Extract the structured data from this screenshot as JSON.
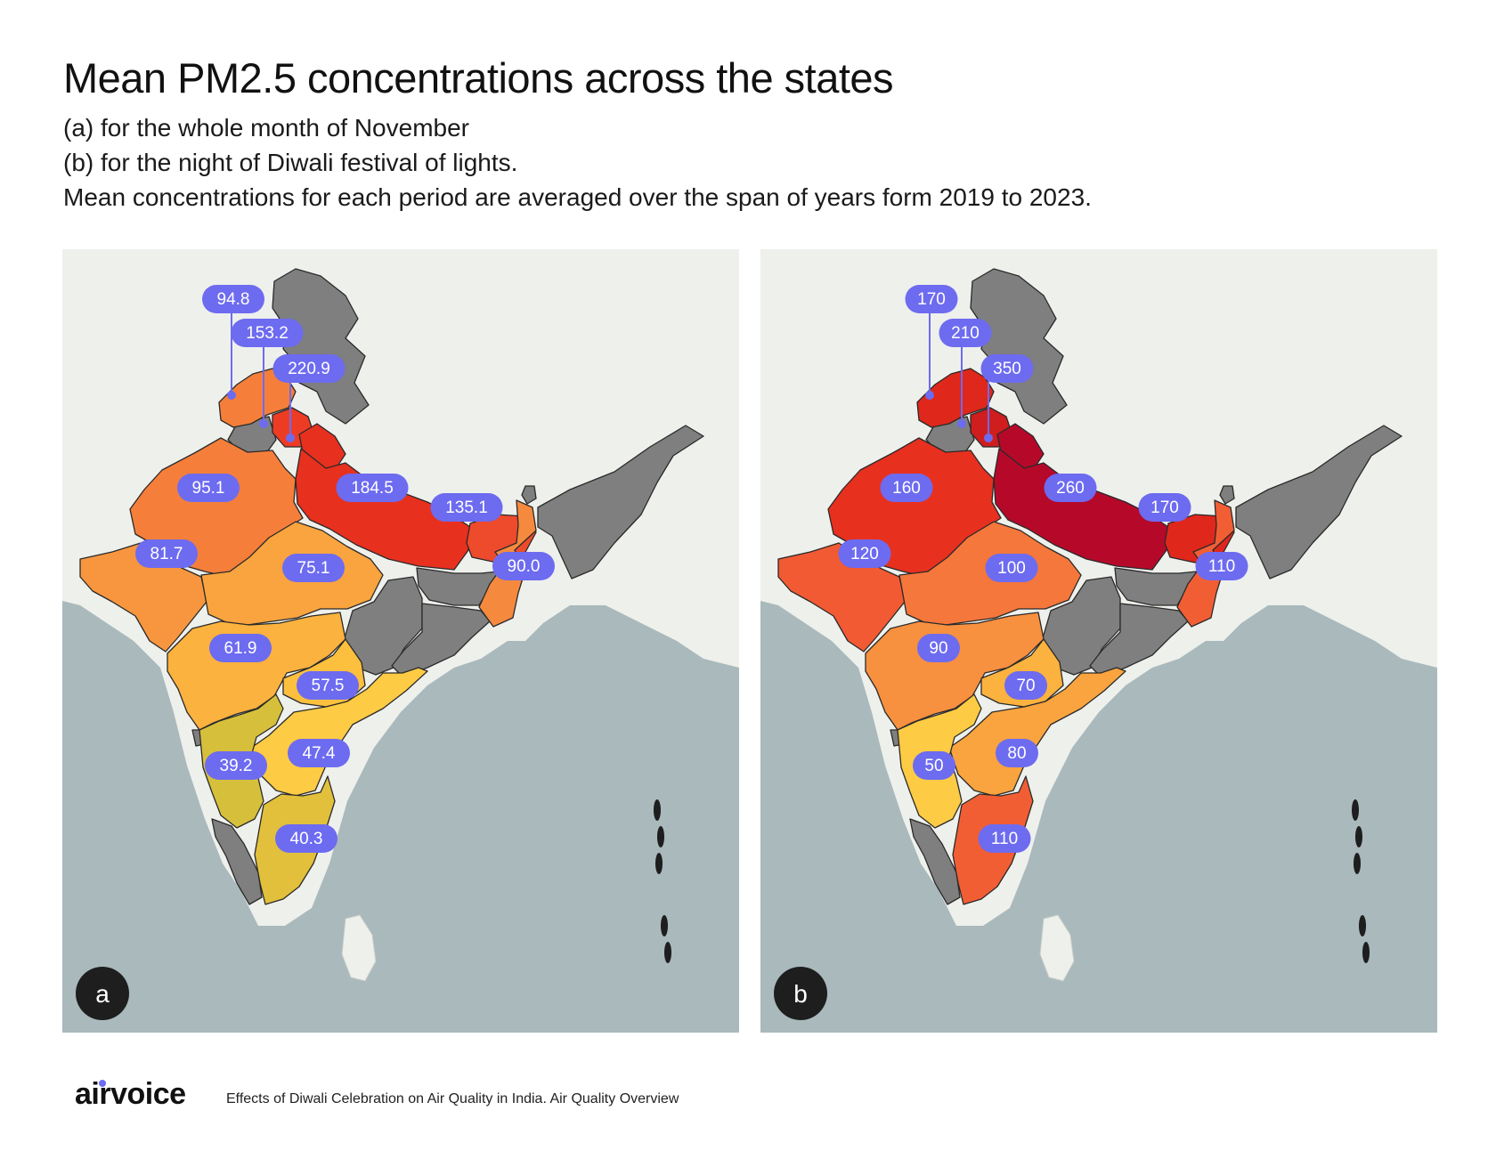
{
  "title": "Mean PM2.5 concentrations across the states",
  "subtitle_lines": [
    "(a) for the whole month of November",
    "(b) for the night of Diwali festival of lights.",
    "Mean concentrations for each period are averaged over the span of years form 2019 to 2023."
  ],
  "footer": {
    "brand": "airvoice",
    "caption": "Effects of Diwali Celebration on Air Quality in India. Air Quality Overview"
  },
  "colors": {
    "sea": "#a9b9bc",
    "land": "#eef0ec",
    "no_data_state": "#7f7f7f",
    "label_bg": "#6d6bf0",
    "label_text": "#ffffff",
    "panel_badge": "#1e1e1e"
  },
  "panels": [
    {
      "letter": "a",
      "states": {
        "jk": {
          "label": "94.8",
          "color": "#f57f3a"
        },
        "hp": {
          "label": "153.2",
          "color": "#ee3c24"
        },
        "ukd": {
          "label": "220.9",
          "color": "#e8301f"
        },
        "raj": {
          "label": "95.1",
          "color": "#f57f3a"
        },
        "up": {
          "label": "184.5",
          "color": "#e8301f"
        },
        "bih": {
          "label": "135.1",
          "color": "#ee4a2c"
        },
        "wb": {
          "label": "90.0",
          "color": "#f58a3e"
        },
        "guj": {
          "label": "81.7",
          "color": "#f7963f"
        },
        "mp": {
          "label": "75.1",
          "color": "#f9a43f"
        },
        "mah": {
          "label": "61.9",
          "color": "#fbb23e"
        },
        "tel": {
          "label": "57.5",
          "color": "#fcc03e"
        },
        "ap": {
          "label": "47.4",
          "color": "#fdcb44"
        },
        "kar": {
          "label": "39.2",
          "color": "#d6c03b"
        },
        "tn": {
          "label": "40.3",
          "color": "#e2c03c"
        }
      }
    },
    {
      "letter": "b",
      "states": {
        "jk": {
          "label": "170",
          "color": "#e0271b"
        },
        "hp": {
          "label": "210",
          "color": "#d01d1e"
        },
        "ukd": {
          "label": "350",
          "color": "#b6092a"
        },
        "raj": {
          "label": "160",
          "color": "#e8301f"
        },
        "up": {
          "label": "260",
          "color": "#b6092a"
        },
        "bih": {
          "label": "170",
          "color": "#e0271b"
        },
        "wb": {
          "label": "110",
          "color": "#f25e34"
        },
        "guj": {
          "label": "120",
          "color": "#f25a33"
        },
        "mp": {
          "label": "100",
          "color": "#f5773b"
        },
        "mah": {
          "label": "90",
          "color": "#f7903f"
        },
        "tel": {
          "label": "70",
          "color": "#fbb23e"
        },
        "ap": {
          "label": "80",
          "color": "#f9a43f"
        },
        "kar": {
          "label": "50",
          "color": "#fdcb44"
        },
        "tn": {
          "label": "110",
          "color": "#f25e34"
        }
      }
    }
  ]
}
